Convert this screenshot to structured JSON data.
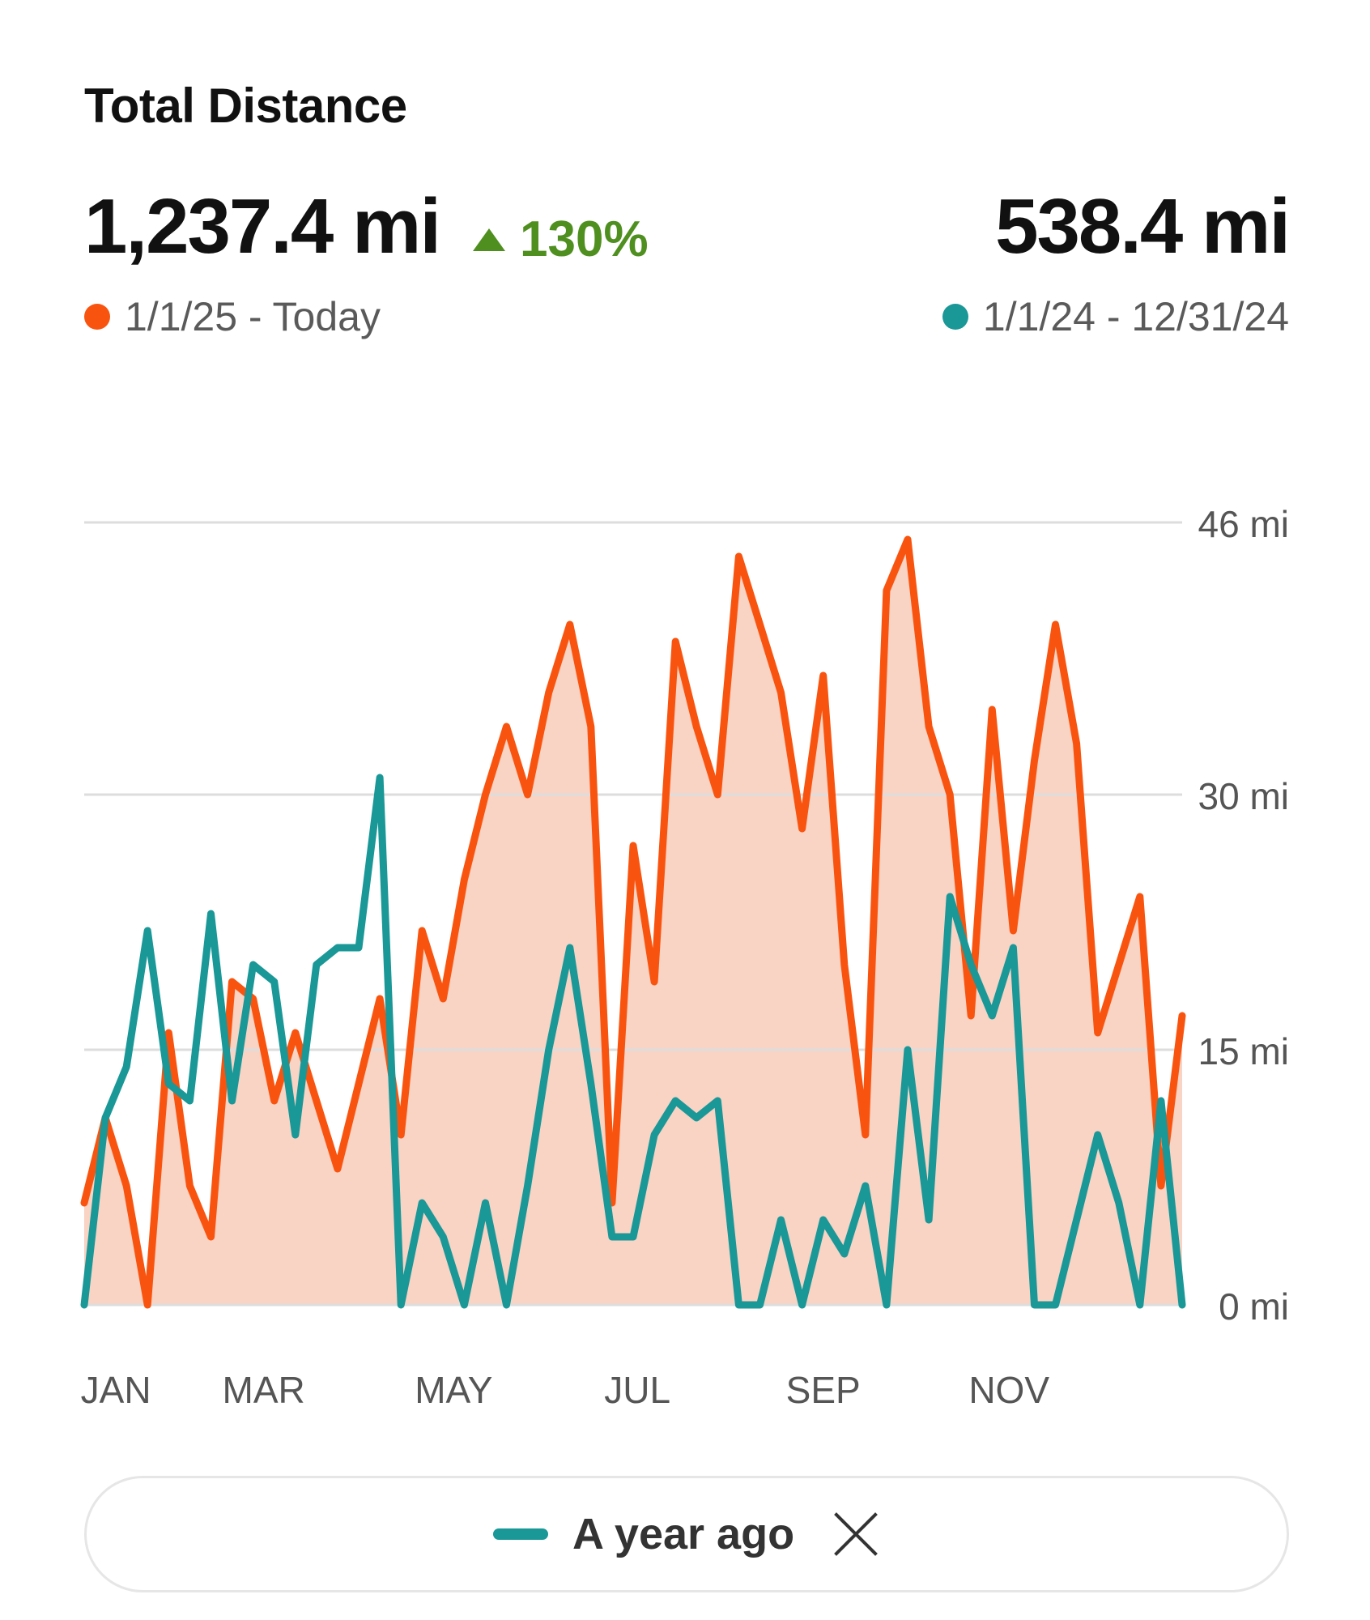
{
  "header": {
    "title": "Total Distance",
    "current_total": "1,237.4 mi",
    "change": "130%",
    "change_direction": "up",
    "previous_total": "538.4 mi",
    "current_range": "1/1/25 - Today",
    "previous_range": "1/1/24 - 12/31/24"
  },
  "colors": {
    "current": "#f9540f",
    "current_fill": "#f9d3c4",
    "previous": "#1a9797",
    "positive": "#4f8f1f",
    "grid": "#dddddd"
  },
  "legend": {
    "label": "A year ago",
    "close_icon": "close-icon"
  },
  "chart_data": {
    "type": "line",
    "ylim": [
      0,
      46
    ],
    "y_ticks": [
      0,
      15,
      30,
      46
    ],
    "y_tick_labels": [
      "0 mi",
      "15 mi",
      "30 mi",
      "46 mi"
    ],
    "x_tick_labels": [
      {
        "label": "JAN",
        "week": 1.5
      },
      {
        "label": "MAR",
        "week": 8.5
      },
      {
        "label": "MAY",
        "week": 17.5
      },
      {
        "label": "JUL",
        "week": 26.2
      },
      {
        "label": "SEP",
        "week": 35
      },
      {
        "label": "NOV",
        "week": 43.8
      }
    ],
    "grid": true,
    "series": [
      {
        "name": "1/1/25 - Today",
        "color_key": "current",
        "area": true,
        "values": [
          6,
          11,
          7,
          0,
          16,
          7,
          4,
          19,
          18,
          12,
          16,
          12,
          8,
          13,
          18,
          10,
          22,
          18,
          25,
          30,
          34,
          30,
          36,
          40,
          34,
          6,
          27,
          19,
          39,
          34,
          30,
          44,
          40,
          36,
          28,
          37,
          20,
          10,
          42,
          45,
          34,
          30,
          17,
          35,
          22,
          32,
          40,
          33,
          16,
          20,
          24,
          7,
          17
        ]
      },
      {
        "name": "1/1/24 - 12/31/24",
        "color_key": "previous",
        "area": false,
        "values": [
          0,
          11,
          14,
          22,
          13,
          12,
          23,
          12,
          20,
          19,
          10,
          20,
          21,
          21,
          31,
          0,
          6,
          4,
          0,
          6,
          0,
          7,
          15,
          21,
          13,
          4,
          4,
          10,
          12,
          11,
          12,
          0,
          0,
          5,
          0,
          5,
          3,
          7,
          0,
          15,
          5,
          24,
          20,
          17,
          21,
          0,
          0,
          5,
          10,
          6,
          0,
          12,
          0
        ]
      }
    ]
  }
}
